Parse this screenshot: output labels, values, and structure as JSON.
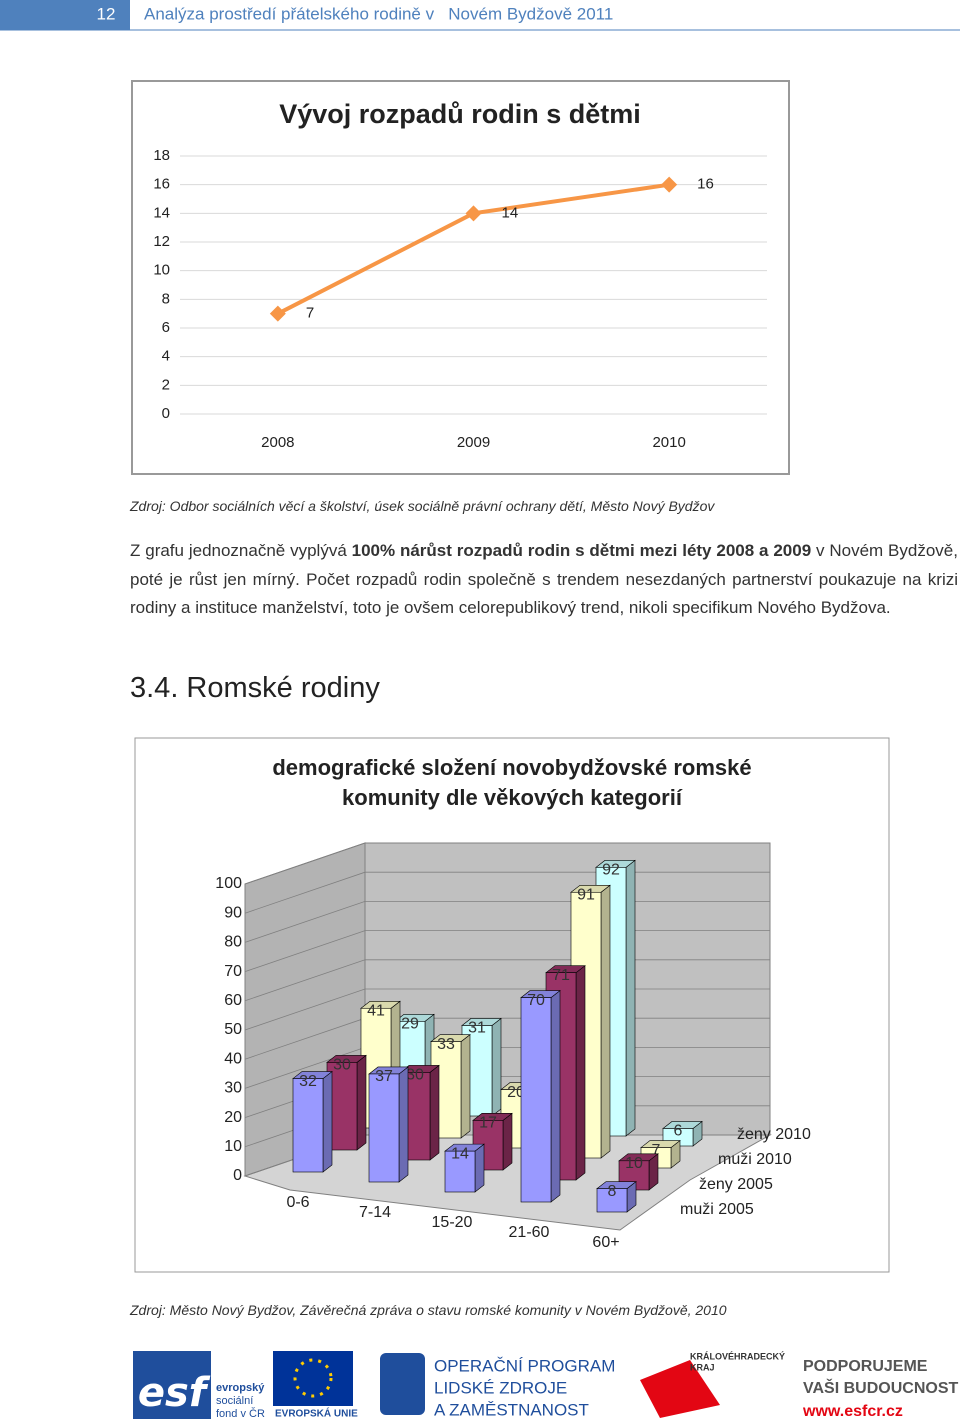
{
  "header": {
    "page_number": "12",
    "title": "Analýza prostředí přátelského rodině v   Novém Bydžově 2011"
  },
  "chart_data": [
    {
      "type": "line",
      "title": "Vývoj rozpadů rodin s dětmi",
      "categories": [
        "2008",
        "2009",
        "2010"
      ],
      "values": [
        7,
        14,
        16
      ],
      "color": "#f79646",
      "ylim": [
        0,
        18
      ],
      "yticks": [
        0,
        2,
        4,
        6,
        8,
        10,
        12,
        14,
        16,
        18
      ],
      "grid": true
    },
    {
      "type": "bar3d",
      "title": "demografické složení novobydžovské romské komunity dle věkových kategorií",
      "categories": [
        "0-6",
        "7-14",
        "15-20",
        "21-60",
        "60+"
      ],
      "ylim": [
        0,
        100
      ],
      "yticks": [
        0,
        10,
        20,
        30,
        40,
        50,
        60,
        70,
        80,
        90,
        100
      ],
      "grid": true,
      "series": [
        {
          "name": "muži 2005",
          "color": "#9999ff",
          "values": [
            32,
            37,
            14,
            70,
            8
          ]
        },
        {
          "name": "ženy 2005",
          "color": "#993366",
          "values": [
            30,
            30,
            17,
            71,
            10
          ]
        },
        {
          "name": "muži 2010",
          "color": "#ffffcc",
          "values": [
            41,
            33,
            20,
            91,
            7
          ]
        },
        {
          "name": "ženy 2010",
          "color": "#ccffff",
          "values": [
            29,
            31,
            null,
            92,
            6
          ]
        }
      ]
    }
  ],
  "source1": "Zdroj: Odbor sociálních věcí a školství, úsek sociálně právní ochrany dětí, Město Nový Bydžov",
  "paragraph": [
    "Z grafu jednoznačně vyplývá ",
    "100% nárůst rozpadů rodin s dětmi mezi léty 2008  a 2009",
    " v Novém Bydžově, poté je růst jen mírný. Počet rozpadů rodin společně s trendem nesezdaných partnerství poukazuje na krizi rodiny a instituce manželství, toto je ovšem celorepublikový trend, nikoli specifikum Nového Bydžova."
  ],
  "heading": "3.4. Romské rodiny",
  "source2": "Zdroj:  Město Nový Bydžov, Závěrečná zpráva o stavu romské komunity v Novém Bydžově, 2010",
  "footer": {
    "esf": [
      "evropský",
      "sociální",
      "fond v ČR"
    ],
    "eu": "EVROPSKÁ UNIE",
    "op": [
      "OPERAČNÍ PROGRAM",
      "LIDSKÉ ZDROJE",
      "A ZAMĚSTNANOST"
    ],
    "kraj": [
      "KRÁLOVÉHRADECKÝ",
      "KRAJ"
    ],
    "slogan": [
      "PODPORUJEME",
      "VAŠI BUDOUCNOST"
    ],
    "web": "www.esfcr.cz"
  }
}
